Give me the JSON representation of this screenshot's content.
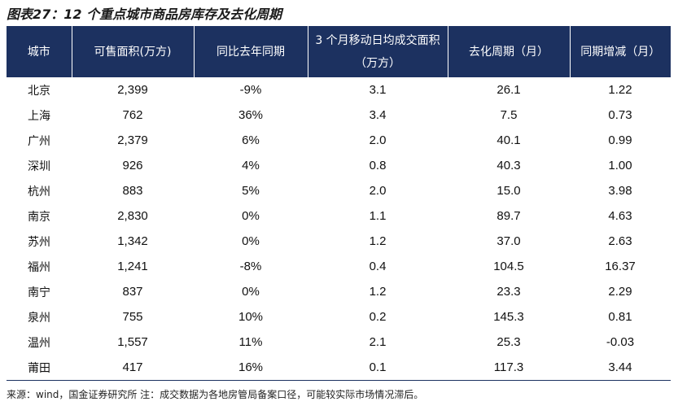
{
  "title": "图表27：12 个重点城市商品房库存及去化周期",
  "table": {
    "columns": [
      "城市",
      "可售面积(万方)",
      "同比去年同期",
      "3 个月移动日均成交面积（万方）",
      "去化周期（月）",
      "同期增减（月）"
    ],
    "rows": [
      [
        "北京",
        "2,399",
        "-9%",
        "3.1",
        "26.1",
        "1.22"
      ],
      [
        "上海",
        "762",
        "36%",
        "3.4",
        "7.5",
        "0.73"
      ],
      [
        "广州",
        "2,379",
        "6%",
        "2.0",
        "40.1",
        "0.99"
      ],
      [
        "深圳",
        "926",
        "4%",
        "0.8",
        "40.3",
        "1.00"
      ],
      [
        "杭州",
        "883",
        "5%",
        "2.0",
        "15.0",
        "3.98"
      ],
      [
        "南京",
        "2,830",
        "0%",
        "1.1",
        "89.7",
        "4.63"
      ],
      [
        "苏州",
        "1,342",
        "0%",
        "1.2",
        "37.0",
        "2.63"
      ],
      [
        "福州",
        "1,241",
        "-8%",
        "0.4",
        "104.5",
        "16.37"
      ],
      [
        "南宁",
        "837",
        "0%",
        "1.2",
        "23.3",
        "2.29"
      ],
      [
        "泉州",
        "755",
        "10%",
        "0.2",
        "145.3",
        "0.81"
      ],
      [
        "温州",
        "1,557",
        "11%",
        "2.1",
        "25.3",
        "-0.03"
      ],
      [
        "莆田",
        "417",
        "16%",
        "0.1",
        "117.3",
        "3.44"
      ]
    ]
  },
  "source": "来源：wind，国金证券研究所 注：成交数据为各地房管局备案口径，可能较实际市场情况滞后。"
}
